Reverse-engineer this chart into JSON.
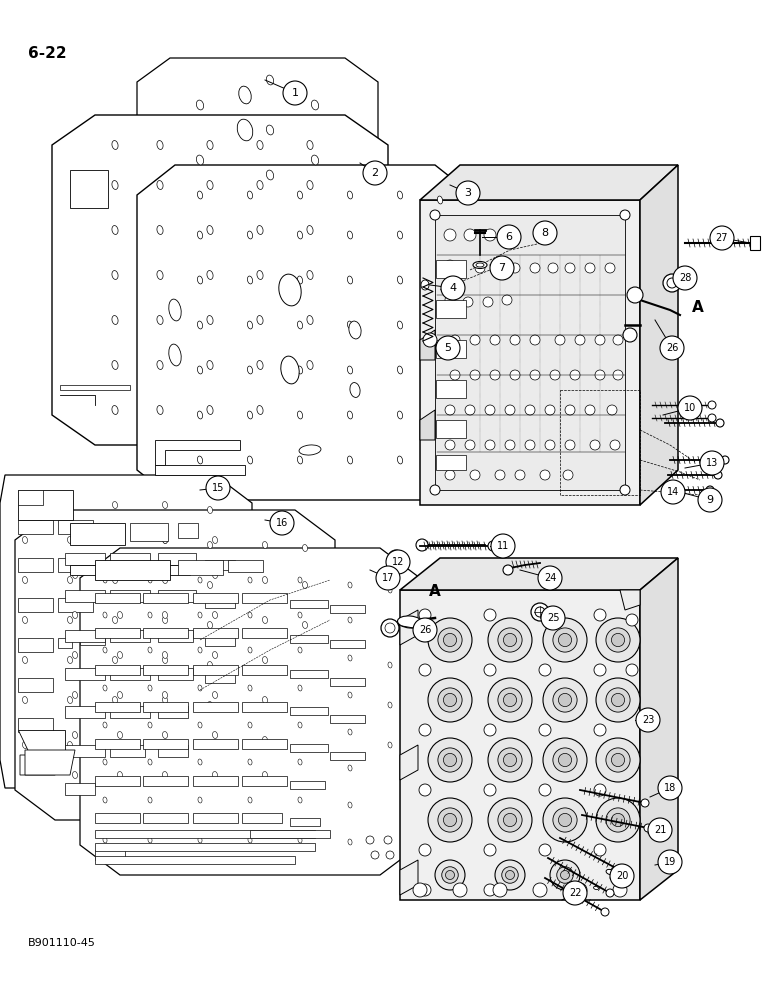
{
  "page_label": "6-22",
  "figure_code": "B901110-45",
  "bg": "#ffffff",
  "lc": "#000000"
}
